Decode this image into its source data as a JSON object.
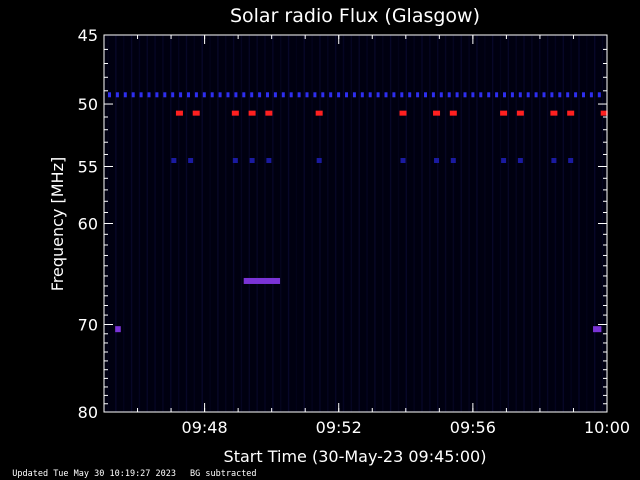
{
  "chart_data": {
    "type": "heatmap",
    "title": "Solar radio Flux (Glasgow)",
    "xlabel": "Start Time (30-May-23 09:45:00)",
    "ylabel": "Frequency [MHz]",
    "xlim": [
      "09:45",
      "10:00"
    ],
    "ylim": [
      45,
      80
    ],
    "y_scale": "log",
    "x_ticks": [
      "09:48",
      "09:52",
      "09:56",
      "10:00"
    ],
    "y_ticks": [
      45,
      50,
      55,
      60,
      70,
      80
    ],
    "background_color": "#000000",
    "signal_colors": {
      "weak": "#1a1aa0",
      "medium": "#2e2ef0",
      "strong": "#ff2020",
      "burst": "#7a33d6"
    },
    "bands": [
      {
        "freq": 49.3,
        "level": "medium",
        "times": "continuous"
      },
      {
        "freq": 50.7,
        "level": "strong",
        "times": [
          "09:47:15",
          "09:47:45",
          "09:48:55",
          "09:49:25",
          "09:49:55",
          "09:51:25",
          "09:53:55",
          "09:54:55",
          "09:55:25",
          "09:56:55",
          "09:57:25",
          "09:58:25",
          "09:58:55",
          "09:59:55"
        ]
      },
      {
        "freq": 54.5,
        "level": "weak",
        "times": [
          "09:47:05",
          "09:47:35",
          "09:48:55",
          "09:49:25",
          "09:49:55",
          "09:51:25",
          "09:53:55",
          "09:54:55",
          "09:55:25",
          "09:56:55",
          "09:57:25",
          "09:58:25",
          "09:58:55"
        ]
      }
    ],
    "bursts": [
      {
        "freq": 65.5,
        "start": "09:49:10",
        "end": "09:50:15",
        "level": "burst"
      },
      {
        "freq": 70.5,
        "start": "09:45:20",
        "end": "09:45:30",
        "level": "burst"
      },
      {
        "freq": 70.5,
        "start": "09:59:35",
        "end": "09:59:50",
        "level": "burst"
      }
    ]
  },
  "footer": {
    "updated": "Updated Tue May 30 10:19:27 2023",
    "note": "BG subtracted"
  }
}
